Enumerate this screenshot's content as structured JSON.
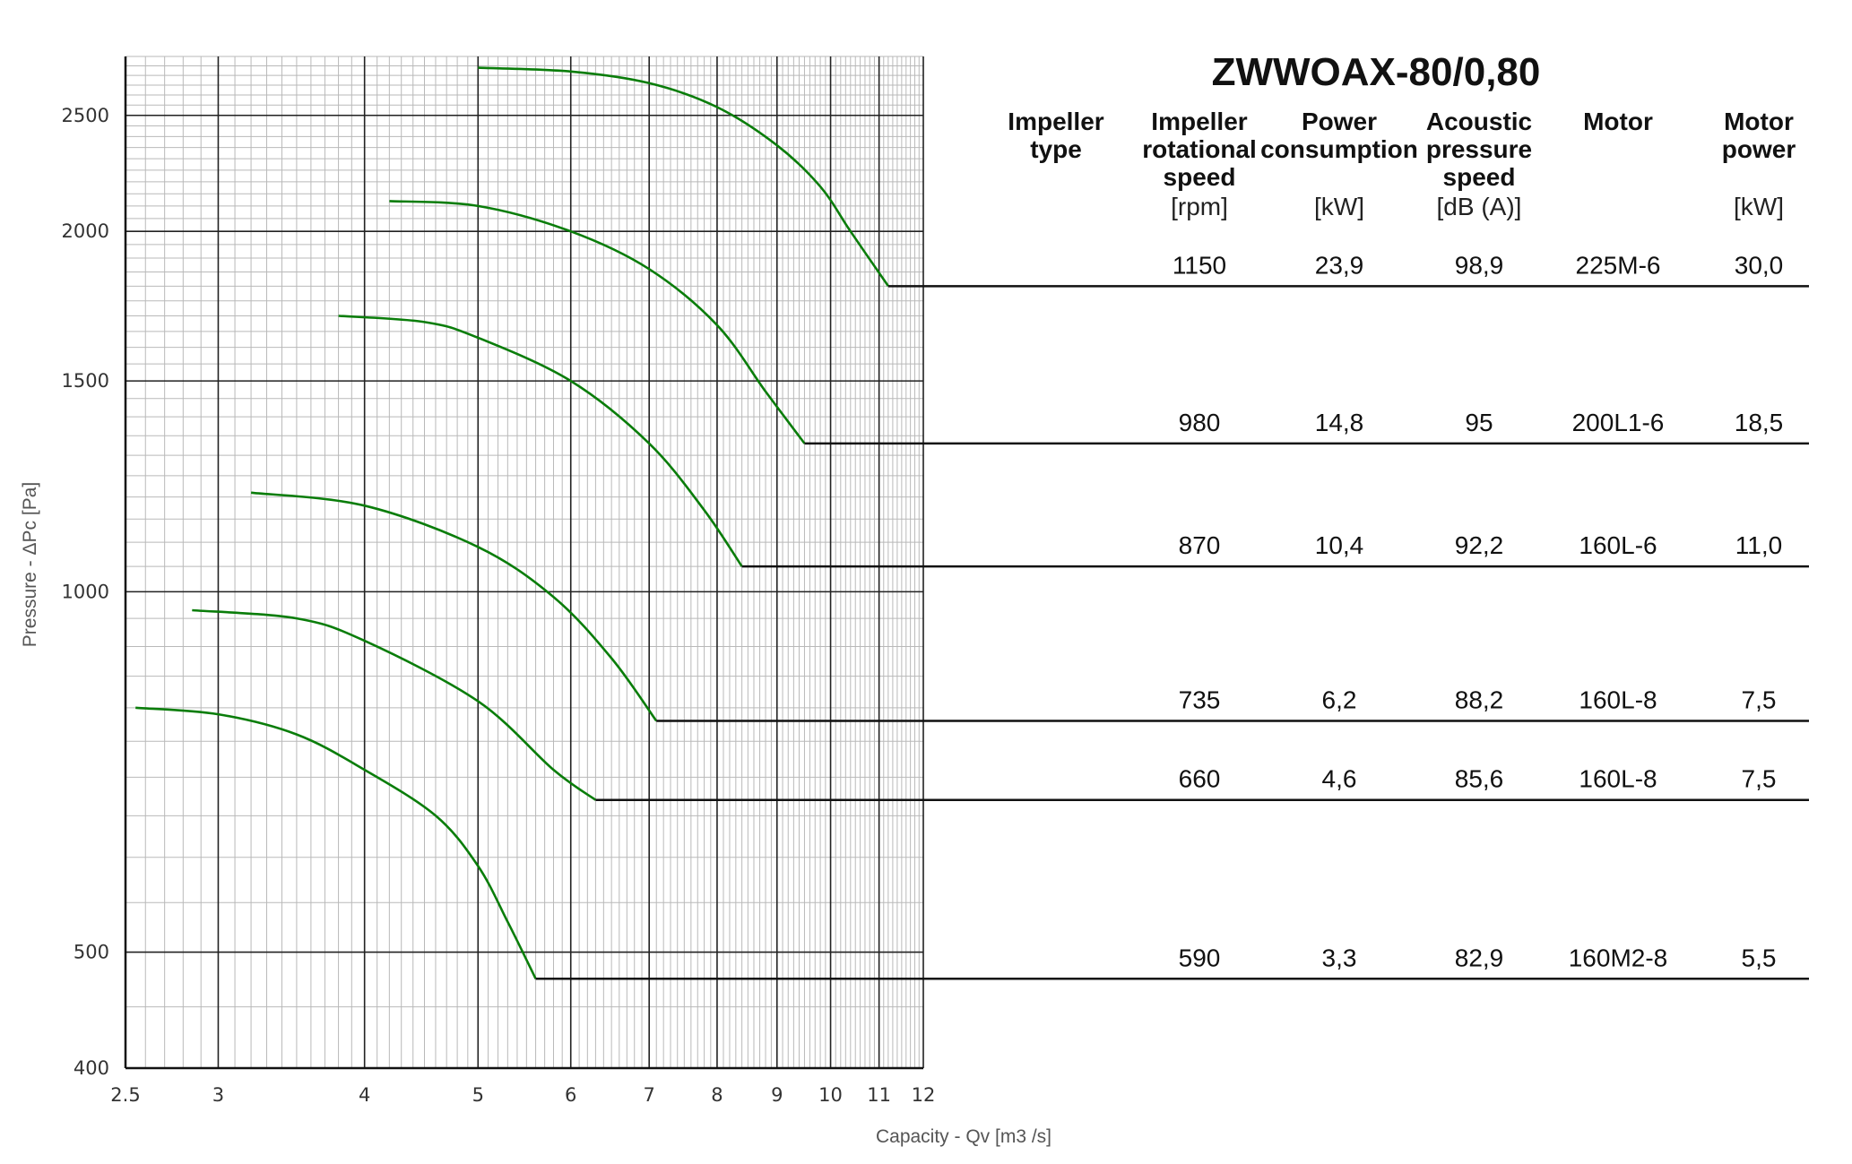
{
  "chart_data": {
    "type": "line",
    "title": "ZWWOAX-80/0,80",
    "xlabel": "Capacity - Qv [m3 /s]",
    "ylabel": "Pressure - ΔPc [Pa]",
    "x_scale": "log",
    "y_scale": "log",
    "xlim": [
      2.5,
      12
    ],
    "ylim": [
      400,
      2800
    ],
    "x_ticks": [
      "2.5",
      "3",
      "4",
      "5",
      "6",
      "7",
      "8",
      "9",
      "10",
      "11",
      "12"
    ],
    "y_ticks": [
      "400",
      "500",
      "1000",
      "1500",
      "2000",
      "2500"
    ],
    "grid": true,
    "line_color": "#0a7d0a",
    "series": [
      {
        "x": [
          5.0,
          6.0,
          7.0,
          8.0,
          9.0,
          9.8,
          10.4,
          11.2
        ],
        "y": [
          2740,
          2720,
          2660,
          2540,
          2360,
          2180,
          2000,
          1800
        ]
      },
      {
        "x": [
          4.2,
          5.0,
          6.0,
          7.0,
          8.0,
          8.8,
          9.5
        ],
        "y": [
          2120,
          2100,
          2000,
          1860,
          1670,
          1470,
          1330
        ]
      },
      {
        "x": [
          3.8,
          4.5,
          5.0,
          6.0,
          7.0,
          7.8,
          8.4
        ],
        "y": [
          1700,
          1680,
          1630,
          1500,
          1330,
          1170,
          1050
        ]
      },
      {
        "x": [
          3.2,
          4.0,
          5.0,
          5.8,
          6.5,
          7.1
        ],
        "y": [
          1210,
          1180,
          1090,
          990,
          880,
          780
        ]
      },
      {
        "x": [
          2.85,
          3.5,
          4.0,
          5.0,
          5.8,
          6.3
        ],
        "y": [
          965,
          950,
          910,
          810,
          710,
          670
        ]
      },
      {
        "x": [
          2.55,
          3.0,
          3.5,
          4.0,
          4.6,
          5.0,
          5.3,
          5.6
        ],
        "y": [
          800,
          790,
          760,
          710,
          650,
          590,
          530,
          475
        ]
      }
    ]
  },
  "table": {
    "headers": [
      {
        "lines": [
          "Impeller",
          "type"
        ],
        "unit": ""
      },
      {
        "lines": [
          "Impeller",
          "rotational",
          "speed"
        ],
        "unit": "[rpm]"
      },
      {
        "lines": [
          "Power",
          "consumption"
        ],
        "unit": "[kW]"
      },
      {
        "lines": [
          "Acoustic",
          "pressure",
          "speed"
        ],
        "unit": "[dB (A)]"
      },
      {
        "lines": [
          "Motor"
        ],
        "unit": ""
      },
      {
        "lines": [
          "Motor",
          "power"
        ],
        "unit": "[kW]"
      }
    ],
    "rows": [
      [
        "",
        "1150",
        "23,9",
        "98,9",
        "225M-6",
        "30,0"
      ],
      [
        "",
        "980",
        "14,8",
        "95",
        "200L1-6",
        "18,5"
      ],
      [
        "",
        "870",
        "10,4",
        "92,2",
        "160L-6",
        "11,0"
      ],
      [
        "",
        "735",
        "6,2",
        "88,2",
        "160L-8",
        "7,5"
      ],
      [
        "",
        "660",
        "4,6",
        "85,6",
        "160L-8",
        "7,5"
      ],
      [
        "",
        "590",
        "3,3",
        "82,9",
        "160M2-8",
        "5,5"
      ]
    ]
  }
}
